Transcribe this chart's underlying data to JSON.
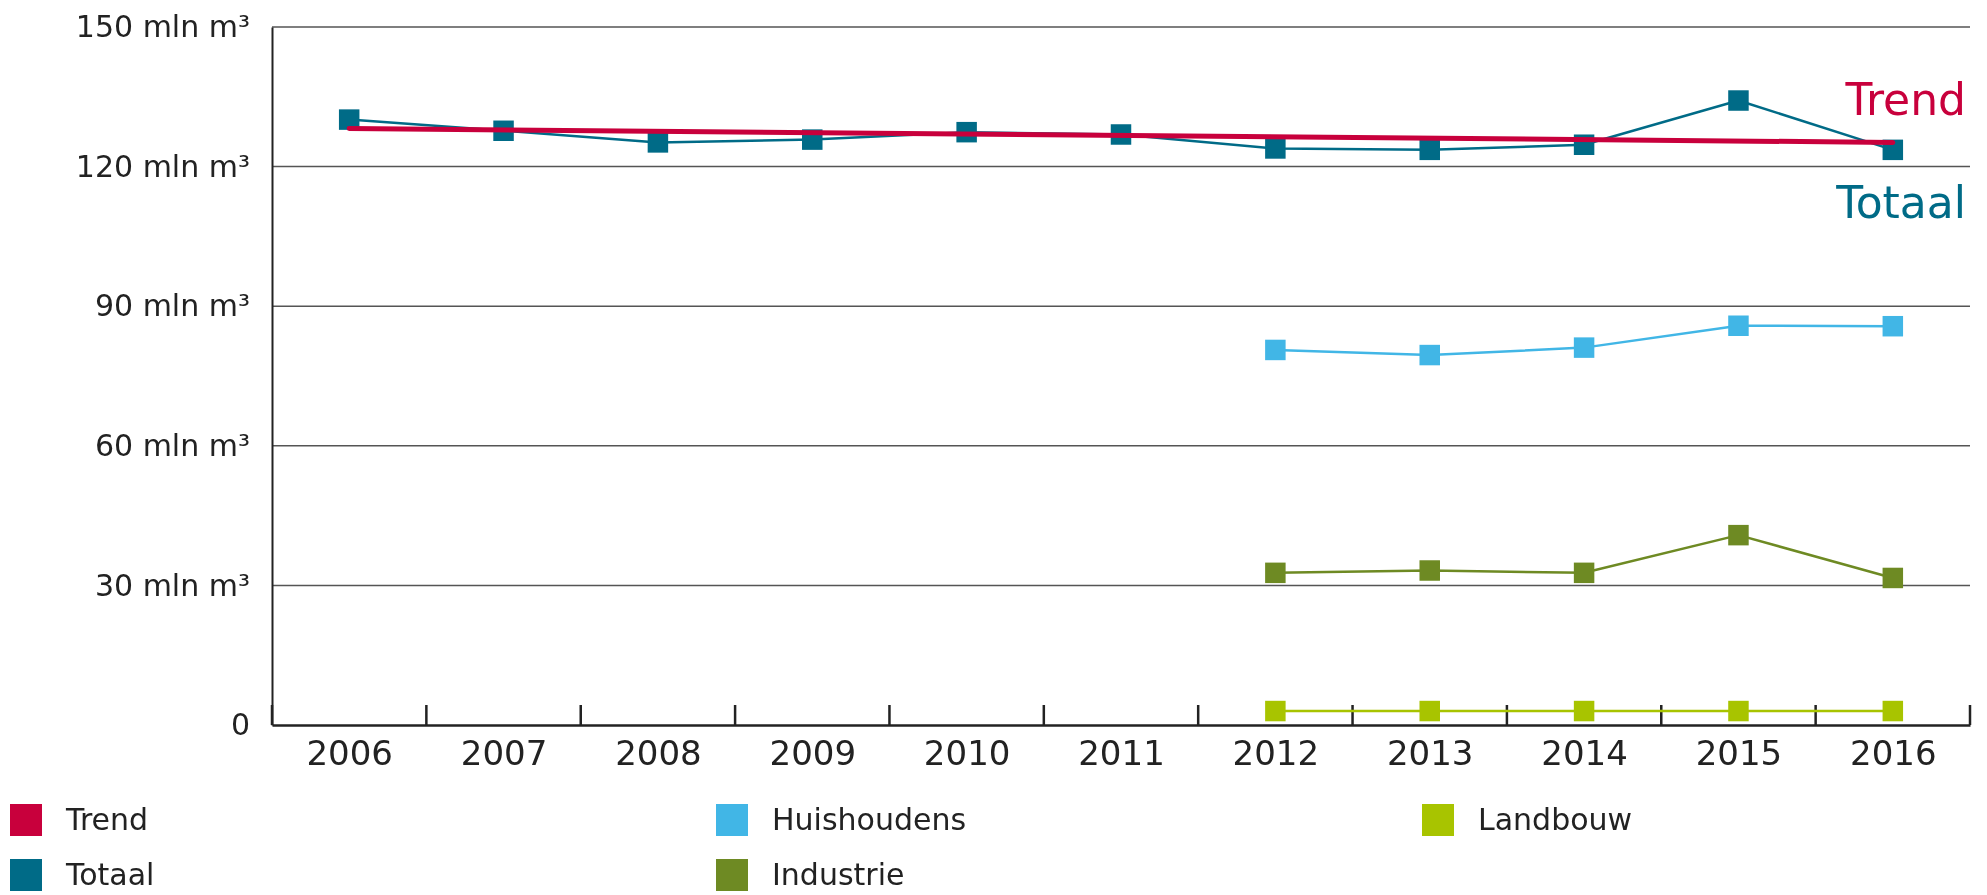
{
  "chart_data": {
    "type": "line",
    "x": [
      2006,
      2007,
      2008,
      2009,
      2010,
      2011,
      2012,
      2013,
      2014,
      2015,
      2016
    ],
    "xlim": [
      2005.5,
      2016.5
    ],
    "xticks": [
      2006,
      2007,
      2008,
      2009,
      2010,
      2011,
      2012,
      2013,
      2014,
      2015,
      2016
    ],
    "ylim": [
      0,
      150
    ],
    "yticks": [
      0,
      {
        "value": 30,
        "label": "30 mln m³"
      },
      {
        "value": 60,
        "label": "60 mln m³"
      },
      {
        "value": 90,
        "label": "90 mln m³"
      },
      {
        "value": 120,
        "label": "120 mln m³"
      },
      {
        "value": 150,
        "label": "150 mln m³"
      }
    ],
    "grid": "y",
    "legend": "bottom",
    "marker": "square",
    "line_style": "solid",
    "series": [
      {
        "name": "Trend",
        "color": "#c8003c",
        "x": [
          2006,
          2016
        ],
        "values": [
          128.2,
          125.2
        ],
        "marker": "none"
      },
      {
        "name": "Totaal",
        "color": "#006b87",
        "values": [
          130.1,
          127.7,
          125.2,
          125.8,
          127.4,
          126.9,
          123.9,
          123.6,
          124.7,
          134.2,
          123.6
        ]
      },
      {
        "name": "Huishoudens",
        "color": "#41b6e6",
        "values": [
          null,
          null,
          null,
          null,
          null,
          null,
          80.6,
          79.5,
          81.1,
          85.8,
          85.7
        ]
      },
      {
        "name": "Industrie",
        "color": "#6e8a23",
        "values": [
          null,
          null,
          null,
          null,
          null,
          null,
          32.7,
          33.2,
          32.7,
          40.8,
          31.6
        ]
      },
      {
        "name": "Landbouw",
        "color": "#a8c400",
        "values": [
          null,
          null,
          null,
          null,
          null,
          null,
          3,
          3,
          3,
          3,
          3
        ]
      }
    ]
  }
}
